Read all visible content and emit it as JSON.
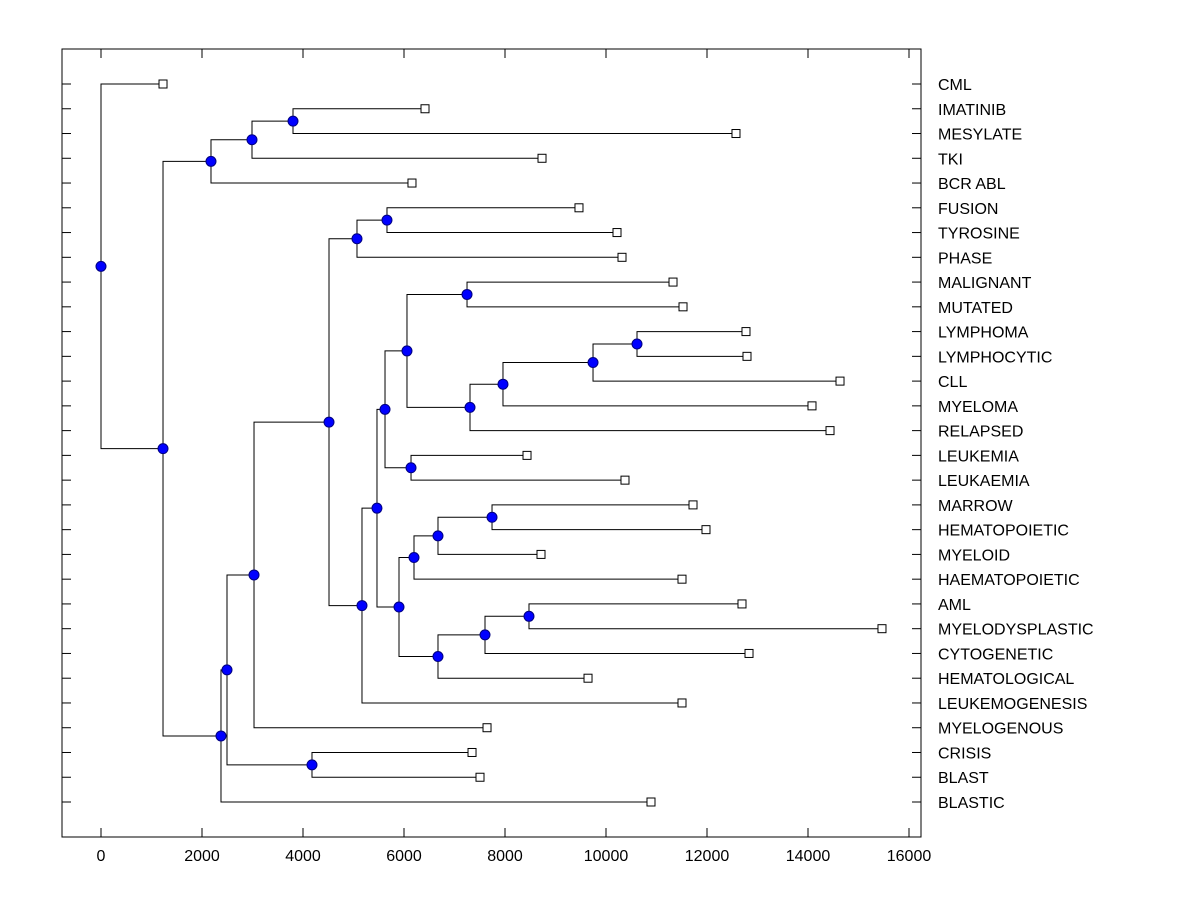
{
  "chart_data": {
    "type": "dendrogram",
    "title": "",
    "xlabel": "",
    "ylabel": "",
    "xlim": [
      -800,
      16200
    ],
    "xticks": [
      0,
      2000,
      4000,
      6000,
      8000,
      10000,
      12000,
      14000,
      16000
    ],
    "xtick_labels": [
      "0",
      "2000",
      "4000",
      "6000",
      "8000",
      "10000",
      "12000",
      "14000",
      "16000"
    ],
    "grid": false,
    "leaf_label_position": "right",
    "colors": {
      "node_fill": "#0000ff",
      "node_stroke": "#000080",
      "line": "#000000",
      "leaf_fill": "#ffffff"
    },
    "leaves": [
      {
        "label": "CML",
        "value": 1228
      },
      {
        "label": "IMATINIB",
        "value": 6416
      },
      {
        "label": "MESYLATE",
        "value": 12574
      },
      {
        "label": "TKI",
        "value": 8733
      },
      {
        "label": "BCR ABL",
        "value": 6158
      },
      {
        "label": "FUSION",
        "value": 9465
      },
      {
        "label": "TYROSINE",
        "value": 10218
      },
      {
        "label": "PHASE",
        "value": 10317
      },
      {
        "label": "MALIGNANT",
        "value": 11327
      },
      {
        "label": "MUTATED",
        "value": 11525
      },
      {
        "label": "LYMPHOMA",
        "value": 12772
      },
      {
        "label": "LYMPHOCYTIC",
        "value": 12792
      },
      {
        "label": "CLL",
        "value": 14634
      },
      {
        "label": "MYELOMA",
        "value": 14079
      },
      {
        "label": "RELAPSED",
        "value": 14436
      },
      {
        "label": "LEUKEMIA",
        "value": 8436
      },
      {
        "label": "LEUKAEMIA",
        "value": 10376
      },
      {
        "label": "MARROW",
        "value": 11723
      },
      {
        "label": "HEMATOPOIETIC",
        "value": 11980
      },
      {
        "label": "MYELOID",
        "value": 8713
      },
      {
        "label": "HAEMATOPOIETIC",
        "value": 11505
      },
      {
        "label": "AML",
        "value": 12693
      },
      {
        "label": "MYELODYSPLASTIC",
        "value": 15465
      },
      {
        "label": "CYTOGENETIC",
        "value": 12832
      },
      {
        "label": "HEMATOLOGICAL",
        "value": 9644
      },
      {
        "label": "LEUKEMOGENESIS",
        "value": 11505
      },
      {
        "label": "MYELOGENOUS",
        "value": 7644
      },
      {
        "label": "CRISIS",
        "value": 7347
      },
      {
        "label": "BLAST",
        "value": 7505
      },
      {
        "label": "BLASTIC",
        "value": 10891
      }
    ],
    "nodes": [
      {
        "id": "root",
        "value": 0,
        "children": [
          "CML",
          "A"
        ]
      },
      {
        "id": "A",
        "value": 1228,
        "children": [
          "B",
          "C"
        ]
      },
      {
        "id": "B",
        "value": 2178,
        "children": [
          "D",
          "BCR ABL"
        ]
      },
      {
        "id": "D",
        "value": 2990,
        "children": [
          "E",
          "TKI"
        ]
      },
      {
        "id": "E",
        "value": 3802,
        "children": [
          "IMATINIB",
          "MESYLATE"
        ]
      },
      {
        "id": "C",
        "value": 2376,
        "children": [
          "F",
          "BLASTIC"
        ]
      },
      {
        "id": "F",
        "value": 2495,
        "children": [
          "G",
          "H"
        ]
      },
      {
        "id": "G",
        "value": 3030,
        "children": [
          "I",
          "MYELOGENOUS"
        ]
      },
      {
        "id": "H",
        "value": 4178,
        "children": [
          "CRISIS",
          "BLAST"
        ]
      },
      {
        "id": "I",
        "value": 4515,
        "children": [
          "J",
          "K"
        ]
      },
      {
        "id": "J",
        "value": 5069,
        "children": [
          "L",
          "PHASE"
        ]
      },
      {
        "id": "L",
        "value": 5663,
        "children": [
          "FUSION",
          "TYROSINE"
        ]
      },
      {
        "id": "K",
        "value": 5168,
        "children": [
          "M",
          "LEUKEMOGENESIS"
        ]
      },
      {
        "id": "M",
        "value": 5465,
        "children": [
          "N",
          "O"
        ]
      },
      {
        "id": "N",
        "value": 5624,
        "children": [
          "P",
          "Q"
        ]
      },
      {
        "id": "P",
        "value": 6059,
        "children": [
          "R",
          "S"
        ]
      },
      {
        "id": "R",
        "value": 7248,
        "children": [
          "MALIGNANT",
          "MUTATED"
        ]
      },
      {
        "id": "S",
        "value": 7307,
        "children": [
          "T",
          "RELAPSED"
        ]
      },
      {
        "id": "T",
        "value": 7960,
        "children": [
          "U",
          "MYELOMA"
        ]
      },
      {
        "id": "U",
        "value": 9743,
        "children": [
          "V",
          "CLL"
        ]
      },
      {
        "id": "V",
        "value": 10614,
        "children": [
          "LYMPHOMA",
          "LYMPHOCYTIC"
        ]
      },
      {
        "id": "Q",
        "value": 6139,
        "children": [
          "LEUKEMIA",
          "LEUKAEMIA"
        ]
      },
      {
        "id": "O",
        "value": 5901,
        "children": [
          "W",
          "X"
        ]
      },
      {
        "id": "W",
        "value": 6198,
        "children": [
          "Y",
          "HAEMATOPOIETIC"
        ]
      },
      {
        "id": "Y",
        "value": 6673,
        "children": [
          "Z",
          "MYELOID"
        ]
      },
      {
        "id": "Z",
        "value": 7743,
        "children": [
          "MARROW",
          "HEMATOPOIETIC"
        ]
      },
      {
        "id": "X",
        "value": 6673,
        "children": [
          "AA",
          "HEMATOLOGICAL"
        ]
      },
      {
        "id": "AA",
        "value": 7604,
        "children": [
          "AB",
          "CYTOGENETIC"
        ]
      },
      {
        "id": "AB",
        "value": 8475,
        "children": [
          "AML",
          "MYELODYSPLASTIC"
        ]
      }
    ]
  }
}
